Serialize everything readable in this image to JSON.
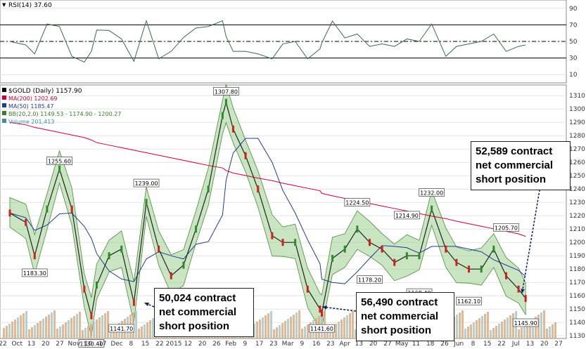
{
  "chart_data": {
    "type": "line",
    "symbol": "$GOLD",
    "title": "$GOLD (Daily) 1157.90",
    "rsi_panel": {
      "label": "RSI(14) 37.60",
      "ylim": [
        0,
        100
      ],
      "ticks": [
        10,
        30,
        50,
        70,
        90
      ],
      "reference_lines": [
        30,
        50,
        70
      ],
      "grid": true
    },
    "legend": {
      "placement": "top-left",
      "entries": [
        {
          "text": "$GOLD (Daily) 1157.90",
          "color": "#000000"
        },
        {
          "text": "MA(200) 1202.69",
          "color": "#cc0033"
        },
        {
          "text": "MA(50) 1185.47",
          "color": "#1f3c99"
        },
        {
          "text": "BB(20,2.0) 1149.53 - 1174.90 - 1200.27",
          "color": "#3a7d2c"
        },
        {
          "text": "Volume 201,413",
          "color": "#3f8fa0"
        }
      ]
    },
    "price_panel": {
      "ylim": [
        1128,
        1318
      ],
      "ticks": [
        1130,
        1140,
        1150,
        1160,
        1170,
        1180,
        1190,
        1200,
        1210,
        1220,
        1230,
        1240,
        1250,
        1260,
        1270,
        1280,
        1290,
        1300,
        1310
      ],
      "grid": true
    },
    "x_tick_labels": [
      "22",
      "Oct",
      "13",
      "20",
      "27",
      "Nov",
      "10",
      "17",
      "Dec",
      "8",
      "15",
      "22",
      "2015",
      "12",
      "20",
      "26",
      "Feb",
      "9",
      "17",
      "23",
      "Mar",
      "9",
      "16",
      "23",
      "Apr",
      "13",
      "20",
      "27",
      "May",
      "11",
      "18",
      "26",
      "Jun",
      "8",
      "15",
      "22",
      "Jul",
      "13",
      "20",
      "27"
    ],
    "price_annotations": [
      {
        "text": "1255.60",
        "value": 1255.6
      },
      {
        "text": "1183.30",
        "value": 1183.3
      },
      {
        "text": "1130.40",
        "value": 1130.4
      },
      {
        "text": "1141.70",
        "value": 1141.7
      },
      {
        "text": "1239.00",
        "value": 1239.0
      },
      {
        "text": "1167.30",
        "value": 1167.3
      },
      {
        "text": "1307.80",
        "value": 1307.8
      },
      {
        "text": "1141.60",
        "value": 1141.6
      },
      {
        "text": "1224.50",
        "value": 1224.5
      },
      {
        "text": "1178.20",
        "value": 1178.2
      },
      {
        "text": "1214.90",
        "value": 1214.9
      },
      {
        "text": "1168.40",
        "value": 1168.4
      },
      {
        "text": "1232.00",
        "value": 1232.0
      },
      {
        "text": "1162.10",
        "value": 1162.1
      },
      {
        "text": "1205.70",
        "value": 1205.7
      },
      {
        "text": "1145.90",
        "value": 1145.9
      }
    ],
    "price_points": [
      {
        "x": "Sep 22",
        "y": 1222
      },
      {
        "x": "Oct 1",
        "y": 1215
      },
      {
        "x": "Oct 6",
        "y": 1190
      },
      {
        "x": "Oct 13",
        "y": 1225
      },
      {
        "x": "Oct 20",
        "y": 1255
      },
      {
        "x": "Oct 27",
        "y": 1225
      },
      {
        "x": "Nov 3",
        "y": 1165
      },
      {
        "x": "Nov 7",
        "y": 1145
      },
      {
        "x": "Nov 10",
        "y": 1168
      },
      {
        "x": "Nov 17",
        "y": 1190
      },
      {
        "x": "Nov 24",
        "y": 1195
      },
      {
        "x": "Dec 1",
        "y": 1155
      },
      {
        "x": "Dec 8",
        "y": 1230
      },
      {
        "x": "Dec 15",
        "y": 1195
      },
      {
        "x": "Dec 22",
        "y": 1175
      },
      {
        "x": "Dec 29",
        "y": 1183
      },
      {
        "x": "Jan 5",
        "y": 1210
      },
      {
        "x": "Jan 12",
        "y": 1240
      },
      {
        "x": "Jan 20",
        "y": 1295
      },
      {
        "x": "Jan 22",
        "y": 1305
      },
      {
        "x": "Jan 26",
        "y": 1285
      },
      {
        "x": "Feb 2",
        "y": 1265
      },
      {
        "x": "Feb 9",
        "y": 1240
      },
      {
        "x": "Feb 17",
        "y": 1205
      },
      {
        "x": "Feb 23",
        "y": 1200
      },
      {
        "x": "Mar 2",
        "y": 1200
      },
      {
        "x": "Mar 9",
        "y": 1165
      },
      {
        "x": "Mar 16",
        "y": 1150
      },
      {
        "x": "Mar 17",
        "y": 1147
      },
      {
        "x": "Mar 23",
        "y": 1188
      },
      {
        "x": "Mar 30",
        "y": 1195
      },
      {
        "x": "Apr 6",
        "y": 1210
      },
      {
        "x": "Apr 13",
        "y": 1200
      },
      {
        "x": "Apr 20",
        "y": 1195
      },
      {
        "x": "Apr 27",
        "y": 1185
      },
      {
        "x": "May 4",
        "y": 1190
      },
      {
        "x": "May 11",
        "y": 1190
      },
      {
        "x": "May 18",
        "y": 1225
      },
      {
        "x": "May 26",
        "y": 1195
      },
      {
        "x": "Jun 1",
        "y": 1185
      },
      {
        "x": "Jun 8",
        "y": 1180
      },
      {
        "x": "Jun 15",
        "y": 1180
      },
      {
        "x": "Jun 22",
        "y": 1195
      },
      {
        "x": "Jun 29",
        "y": 1175
      },
      {
        "x": "Jul 6",
        "y": 1165
      },
      {
        "x": "Jul 10",
        "y": 1158
      }
    ]
  },
  "callouts": [
    {
      "text": "50,024 contract\nnet commercial\nshort position"
    },
    {
      "text": "56,490 contract\nnet commercial\nshort position"
    },
    {
      "text": "52,589 contract\nnet commercial\nshort position"
    }
  ]
}
